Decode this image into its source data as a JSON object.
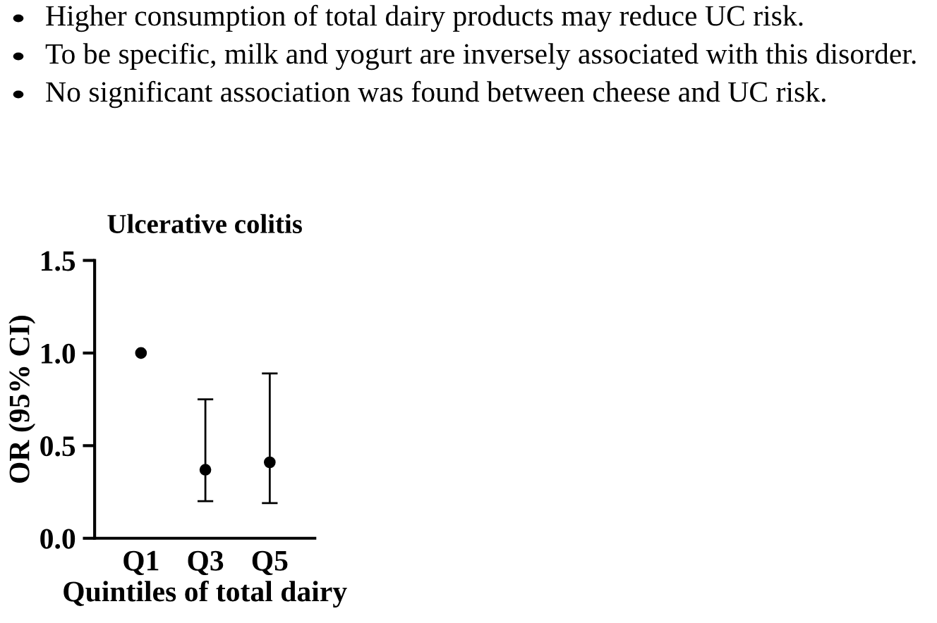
{
  "chart_data": {
    "type": "scatter",
    "title": "Ulcerative colitis",
    "xlabel": "Quintiles of total dairy",
    "ylabel": "OR (95% CI)",
    "categories": [
      "Q1",
      "Q3",
      "Q5"
    ],
    "values": [
      1.0,
      0.37,
      0.41
    ],
    "errors": [
      null,
      [
        0.2,
        0.75
      ],
      [
        0.19,
        0.89
      ]
    ],
    "color": "#000000",
    "marker": "circle",
    "grid": false,
    "legend": false,
    "ylim": [
      0,
      1.5
    ],
    "yticks": [
      {
        "value": 0,
        "label": "0.0"
      },
      0.5,
      {
        "value": 1,
        "label": "1.0"
      },
      1.5
    ],
    "annotations": [
      "Higher consumption of total dairy products may reduce UC risk.",
      "To be specific, milk and yogurt are inversely associated with this disorder.",
      "No significant association was found between cheese and UC risk."
    ]
  }
}
